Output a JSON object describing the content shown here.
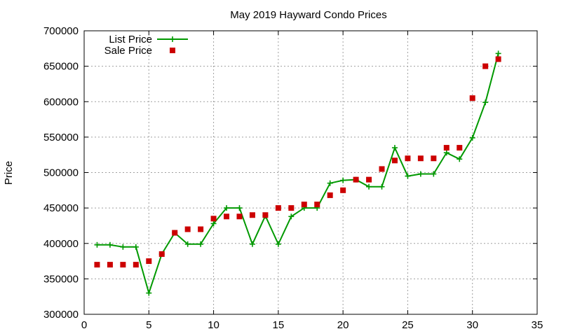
{
  "chart_data": {
    "type": "line",
    "title": "May 2019 Hayward Condo Prices",
    "xlabel": "",
    "ylabel": "Price",
    "xlim": [
      0,
      35
    ],
    "ylim": [
      300000,
      700000
    ],
    "xticks": [
      0,
      5,
      10,
      15,
      20,
      25,
      30,
      35
    ],
    "yticks": [
      300000,
      350000,
      400000,
      450000,
      500000,
      550000,
      600000,
      650000,
      700000
    ],
    "grid": true,
    "legend_position": "top-left",
    "series": [
      {
        "name": "List Price",
        "style": "line-with-plus-markers",
        "color": "#009900",
        "x": [
          1,
          2,
          3,
          4,
          5,
          6,
          7,
          8,
          9,
          10,
          11,
          12,
          13,
          14,
          15,
          16,
          17,
          18,
          19,
          20,
          21,
          22,
          23,
          24,
          25,
          26,
          27,
          28,
          29,
          30,
          31,
          32
        ],
        "values": [
          398000,
          398000,
          395000,
          395000,
          330000,
          385000,
          415000,
          399000,
          399000,
          428000,
          450000,
          450000,
          399000,
          439000,
          399000,
          438000,
          450000,
          450000,
          485000,
          489000,
          490000,
          480000,
          480000,
          535000,
          495000,
          498000,
          498000,
          528000,
          519000,
          549000,
          599000,
          668000
        ]
      },
      {
        "name": "Sale Price",
        "style": "square-markers",
        "color": "#cc0000",
        "x": [
          1,
          2,
          3,
          4,
          5,
          6,
          7,
          8,
          9,
          10,
          11,
          12,
          13,
          14,
          15,
          16,
          17,
          18,
          19,
          20,
          21,
          22,
          23,
          24,
          25,
          26,
          27,
          28,
          29,
          30,
          31,
          32
        ],
        "values": [
          370000,
          370000,
          370000,
          370000,
          375000,
          385000,
          415000,
          420000,
          420000,
          435000,
          438000,
          438000,
          440000,
          440000,
          450000,
          450000,
          455000,
          455000,
          468000,
          475000,
          490000,
          490000,
          505000,
          517000,
          520000,
          520000,
          520000,
          535000,
          535000,
          605000,
          650000,
          660000
        ]
      }
    ]
  }
}
